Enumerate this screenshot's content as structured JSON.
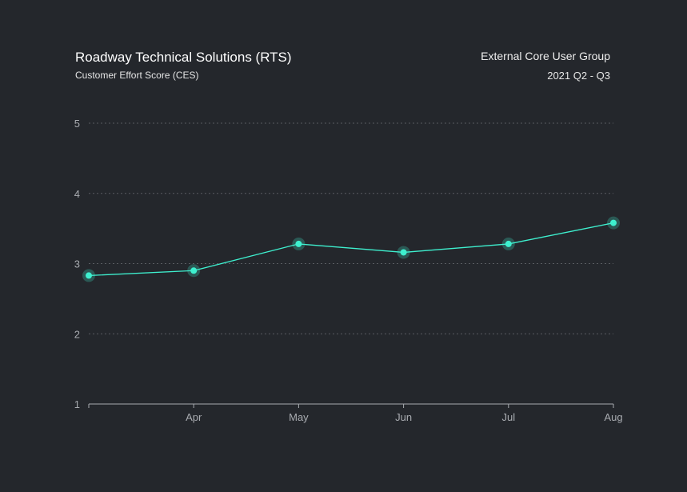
{
  "header": {
    "title": "Roadway Technical Solutions (RTS)",
    "subtitle": "Customer Effort Score (CES)",
    "group": "External Core User Group",
    "period": "2021 Q2 - Q3"
  },
  "chart_data": {
    "type": "line",
    "categories": [
      "",
      "Apr",
      "May",
      "Jun",
      "Jul",
      "Aug"
    ],
    "values": [
      2.83,
      2.9,
      3.28,
      3.16,
      3.28,
      3.58
    ],
    "ylim": [
      1,
      5
    ],
    "yticks": [
      1,
      2,
      3,
      4,
      5
    ],
    "grid": true,
    "colors": {
      "line": "#3ef0cf",
      "background": "#24272c",
      "grid": "#5a5d62"
    }
  }
}
